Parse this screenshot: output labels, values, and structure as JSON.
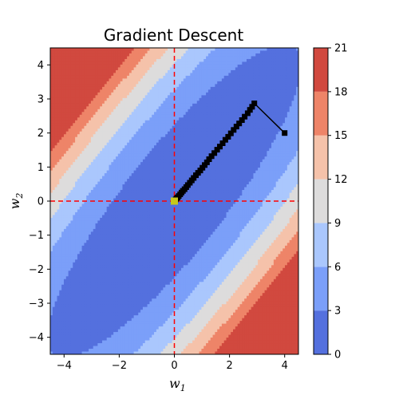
{
  "chart_data": {
    "type": "contour",
    "title": "Gradient Descent",
    "xlabel": "w",
    "xlabel_sub": "1",
    "ylabel": "w",
    "ylabel_sub": "2",
    "xlim": [
      -4.5,
      4.5
    ],
    "ylim": [
      -4.5,
      4.5
    ],
    "x_ticks": [
      -4,
      -2,
      0,
      2,
      4
    ],
    "y_ticks": [
      -4,
      -3,
      -2,
      -1,
      0,
      1,
      2,
      3,
      4
    ],
    "contour_levels": [
      0,
      3,
      6,
      9,
      12,
      15,
      18,
      21
    ],
    "contour_colors": [
      "#5470de",
      "#7b9ff9",
      "#aac7fd",
      "#dddcdc",
      "#f5c2aa",
      "#ee8468",
      "#d1493f"
    ],
    "colorbar_ticks": [
      0,
      3,
      6,
      9,
      12,
      15,
      18,
      21
    ],
    "reference_lines": {
      "x": 0,
      "y": 0,
      "color": "#ff0000",
      "style": "dashed"
    },
    "path": {
      "color": "#000000",
      "marker": "square",
      "points": [
        [
          4.0,
          2.0
        ],
        [
          2.9,
          2.87
        ],
        [
          2.82,
          2.77
        ],
        [
          2.74,
          2.68
        ],
        [
          2.66,
          2.58
        ],
        [
          2.55,
          2.48
        ],
        [
          2.45,
          2.38
        ],
        [
          2.35,
          2.28
        ],
        [
          2.25,
          2.19
        ],
        [
          2.15,
          2.09
        ],
        [
          2.05,
          1.99
        ],
        [
          1.95,
          1.89
        ],
        [
          1.85,
          1.8
        ],
        [
          1.75,
          1.7
        ],
        [
          1.65,
          1.6
        ],
        [
          1.55,
          1.51
        ],
        [
          1.45,
          1.41
        ],
        [
          1.35,
          1.32
        ],
        [
          1.26,
          1.23
        ],
        [
          1.18,
          1.14
        ],
        [
          1.1,
          1.06
        ],
        [
          1.02,
          0.98
        ],
        [
          0.94,
          0.9
        ],
        [
          0.86,
          0.83
        ],
        [
          0.78,
          0.76
        ],
        [
          0.7,
          0.68
        ],
        [
          0.63,
          0.61
        ],
        [
          0.56,
          0.54
        ],
        [
          0.49,
          0.47
        ],
        [
          0.43,
          0.41
        ],
        [
          0.37,
          0.35
        ],
        [
          0.31,
          0.3
        ],
        [
          0.26,
          0.25
        ],
        [
          0.21,
          0.2
        ],
        [
          0.16,
          0.15
        ],
        [
          0.12,
          0.11
        ],
        [
          0.08,
          0.08
        ],
        [
          0.05,
          0.05
        ],
        [
          0.02,
          0.02
        ]
      ]
    },
    "optimum": {
      "x": 0,
      "y": 0,
      "color": "#c8c81a"
    }
  }
}
